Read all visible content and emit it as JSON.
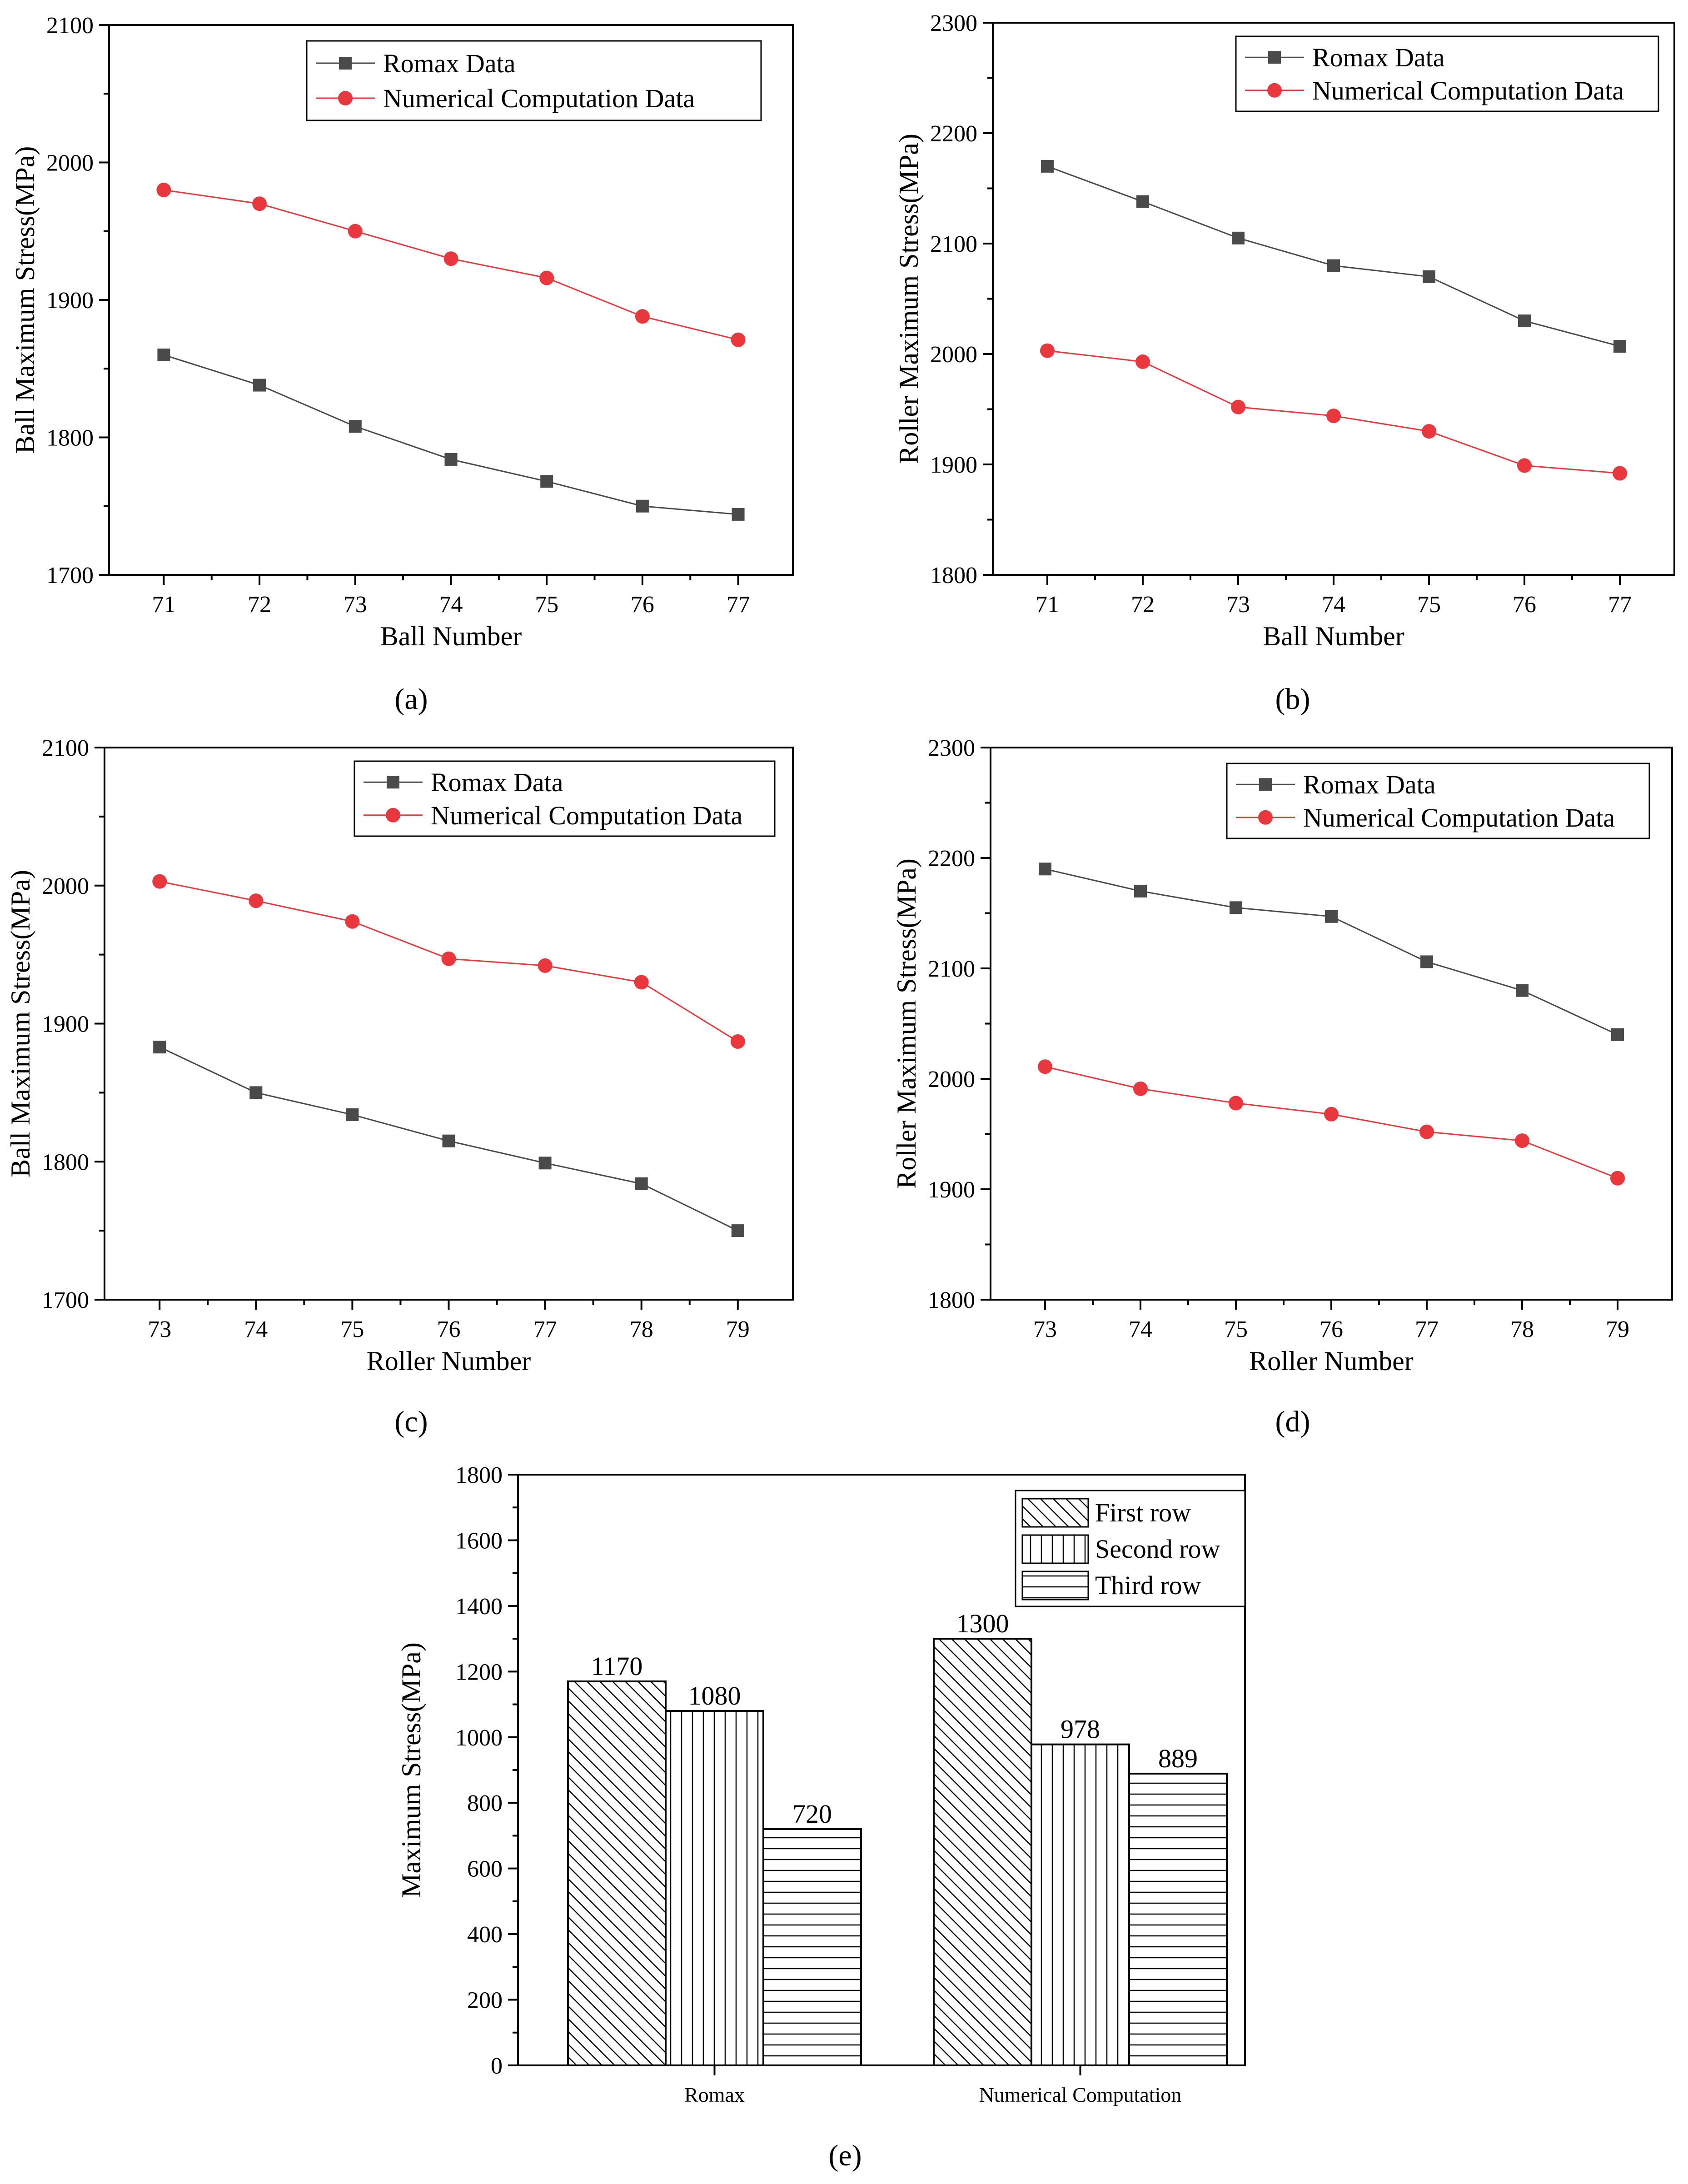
{
  "chart_data": [
    {
      "panel": "a",
      "caption": "(a)",
      "type": "line",
      "xlabel": "Ball Number",
      "ylabel": "Ball Maximum Stress(MPa)",
      "x": [
        71,
        72,
        73,
        74,
        75,
        76,
        77
      ],
      "ylim": [
        1700,
        2100
      ],
      "yticks": [
        1700,
        1800,
        1900,
        2000,
        2100
      ],
      "legend_position": "top-right",
      "series": [
        {
          "name": "Romax Data",
          "color": "#4a4a4a",
          "marker": "square",
          "values": [
            1860,
            1838,
            1808,
            1784,
            1768,
            1750,
            1744
          ]
        },
        {
          "name": "Numerical Computation Data",
          "color": "#e8383d",
          "marker": "circle",
          "values": [
            1980,
            1970,
            1950,
            1930,
            1916,
            1888,
            1871
          ]
        }
      ]
    },
    {
      "panel": "b",
      "caption": "(b)",
      "type": "line",
      "xlabel": "Ball Number",
      "ylabel": "Roller Maximum Stress(MPa)",
      "x": [
        71,
        72,
        73,
        74,
        75,
        76,
        77
      ],
      "ylim": [
        1800,
        2300
      ],
      "yticks": [
        1800,
        1900,
        2000,
        2100,
        2200,
        2300
      ],
      "legend_position": "top-right",
      "series": [
        {
          "name": "Romax Data",
          "color": "#4a4a4a",
          "marker": "square",
          "values": [
            2170,
            2138,
            2105,
            2080,
            2070,
            2030,
            2007
          ]
        },
        {
          "name": "Numerical Computation Data",
          "color": "#e8383d",
          "marker": "circle",
          "values": [
            2003,
            1993,
            1952,
            1944,
            1930,
            1899,
            1892
          ]
        }
      ]
    },
    {
      "panel": "c",
      "caption": "(c)",
      "type": "line",
      "xlabel": "Roller Number",
      "ylabel": "Ball Maximum Stress(MPa)",
      "x": [
        73,
        74,
        75,
        76,
        77,
        78,
        79
      ],
      "ylim": [
        1700,
        2100
      ],
      "yticks": [
        1700,
        1800,
        1900,
        2000,
        2100
      ],
      "legend_position": "top-right",
      "series": [
        {
          "name": "Romax Data",
          "color": "#4a4a4a",
          "marker": "square",
          "values": [
            1883,
            1850,
            1834,
            1815,
            1799,
            1784,
            1750
          ]
        },
        {
          "name": "Numerical Computation Data",
          "color": "#e8383d",
          "marker": "circle",
          "values": [
            2003,
            1989,
            1974,
            1947,
            1942,
            1930,
            1887
          ]
        }
      ]
    },
    {
      "panel": "d",
      "caption": "(d)",
      "type": "line",
      "xlabel": "Roller Number",
      "ylabel": "Roller Maximum Stress(MPa)",
      "x": [
        73,
        74,
        75,
        76,
        77,
        78,
        79
      ],
      "ylim": [
        1800,
        2300
      ],
      "yticks": [
        1800,
        1900,
        2000,
        2100,
        2200,
        2300
      ],
      "legend_position": "top-right",
      "series": [
        {
          "name": "Romax Data",
          "color": "#4a4a4a",
          "marker": "square",
          "values": [
            2190,
            2170,
            2155,
            2147,
            2106,
            2080,
            2040
          ]
        },
        {
          "name": "Numerical Computation Data",
          "color": "#e8383d",
          "marker": "circle",
          "values": [
            2011,
            1991,
            1978,
            1968,
            1952,
            1944,
            1910
          ]
        }
      ]
    },
    {
      "panel": "e",
      "caption": "(e)",
      "type": "bar",
      "xlabel": "",
      "ylabel": "Maximum Stress(MPa)",
      "categories": [
        "Romax",
        "Numerical Computation"
      ],
      "ylim": [
        0,
        1800
      ],
      "yticks": [
        0,
        200,
        400,
        600,
        800,
        1000,
        1200,
        1400,
        1600,
        1800
      ],
      "legend_position": "top-right",
      "series": [
        {
          "name": "First row",
          "pattern": "diagonal",
          "values": [
            1170,
            1300
          ],
          "labels": [
            "1170",
            "1300"
          ]
        },
        {
          "name": "Second row",
          "pattern": "vertical",
          "values": [
            1080,
            978
          ],
          "labels": [
            "1080",
            "978"
          ]
        },
        {
          "name": "Third row",
          "pattern": "horizontal",
          "values": [
            720,
            889
          ],
          "labels": [
            "720",
            "889"
          ]
        }
      ]
    }
  ]
}
